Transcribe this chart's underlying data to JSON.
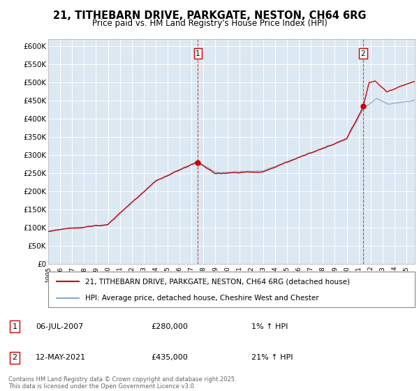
{
  "title": "21, TITHEBARN DRIVE, PARKGATE, NESTON, CH64 6RG",
  "subtitle": "Price paid vs. HM Land Registry's House Price Index (HPI)",
  "plot_bg_color": "#dce8f2",
  "yticks": [
    0,
    50000,
    100000,
    150000,
    200000,
    250000,
    300000,
    350000,
    400000,
    450000,
    500000,
    550000,
    600000
  ],
  "sale1_year": 2007.54,
  "sale1_price": 280000,
  "sale2_year": 2021.37,
  "sale2_price": 435000,
  "red_line_color": "#cc0000",
  "blue_line_color": "#88aacc",
  "legend1": "21, TITHEBARN DRIVE, PARKGATE, NESTON, CH64 6RG (detached house)",
  "legend2": "HPI: Average price, detached house, Cheshire West and Chester",
  "footer": "Contains HM Land Registry data © Crown copyright and database right 2025.\nThis data is licensed under the Open Government Licence v3.0.",
  "xmin": 1995,
  "xmax": 2025.7,
  "ymin": 0,
  "ymax": 620000
}
